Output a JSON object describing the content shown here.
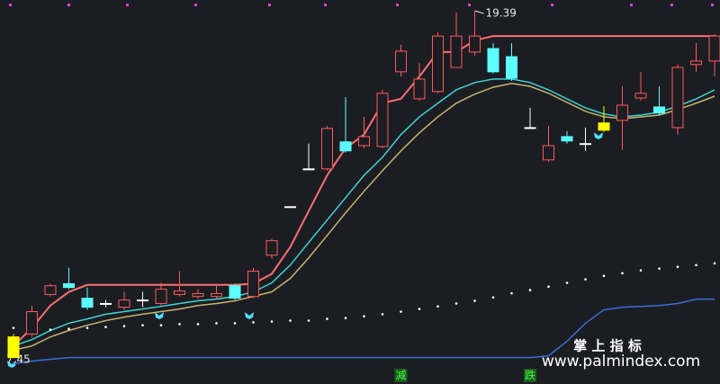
{
  "chart_data": {
    "type": "candlestick",
    "ylim": [
      6.55,
      19.76
    ],
    "candles": {
      "open": [
        7.46,
        8.27,
        9.63,
        10.0,
        9.5,
        9.32,
        9.19,
        9.44,
        9.32,
        9.63,
        9.56,
        9.56,
        9.93,
        9.56,
        10.98,
        12.65,
        13.95,
        13.95,
        14.88,
        14.75,
        14.72,
        17.29,
        16.36,
        16.61,
        17.44,
        17.97,
        18.09,
        17.81,
        15.37,
        14.26,
        15.06,
        14.82,
        15.28,
        15.62,
        16.39,
        16.08,
        15.37,
        17.54,
        17.66
      ],
      "close": [
        8.17,
        9.04,
        9.93,
        9.87,
        9.19,
        9.32,
        9.44,
        9.44,
        9.81,
        9.75,
        9.66,
        9.66,
        9.5,
        10.43,
        11.48,
        12.65,
        13.95,
        15.34,
        14.57,
        15.06,
        16.55,
        18.0,
        17.04,
        18.52,
        18.52,
        18.52,
        17.29,
        17.07,
        15.37,
        14.75,
        14.91,
        14.82,
        15.53,
        16.14,
        16.55,
        15.87,
        17.44,
        17.66,
        18.52
      ],
      "high": [
        8.27,
        9.25,
        10.0,
        10.55,
        9.87,
        9.44,
        9.72,
        9.72,
        10.03,
        10.43,
        9.81,
        10.0,
        10.0,
        10.55,
        11.54,
        12.65,
        14.82,
        15.43,
        16.42,
        15.74,
        16.67,
        18.22,
        17.6,
        18.65,
        19.33,
        19.39,
        18.28,
        18.28,
        16.05,
        15.43,
        15.25,
        15.37,
        16.11,
        16.79,
        17.29,
        16.79,
        17.54,
        18.28,
        18.59
      ],
      "low": [
        7.45,
        8.17,
        9.56,
        9.81,
        9.1,
        9.19,
        9.1,
        9.19,
        9.25,
        9.56,
        9.47,
        9.47,
        9.44,
        9.5,
        10.86,
        12.65,
        13.95,
        13.89,
        14.51,
        14.66,
        14.66,
        17.13,
        16.3,
        16.55,
        17.44,
        17.84,
        17.23,
        16.98,
        15.37,
        14.2,
        14.82,
        14.57,
        15.22,
        14.6,
        16.3,
        15.8,
        15.13,
        17.29,
        17.13
      ],
      "colors": [
        "#ffff00",
        "#ff5a5a",
        "#ff5a5a",
        "#5cffff",
        "#5cffff",
        "#ffffff",
        "#ff5a5a",
        "#ffffff",
        "#ff5a5a",
        "#ff5a5a",
        "#ff5a5a",
        "#ff5a5a",
        "#5cffff",
        "#ff5a5a",
        "#ff5a5a",
        "#ffffff",
        "#ffffff",
        "#ff5a5a",
        "#5cffff",
        "#ff5a5a",
        "#ff5a5a",
        "#ff5a5a",
        "#ff5a5a",
        "#ff5a5a",
        "#ff5a5a",
        "#ff5a5a",
        "#5cffff",
        "#5cffff",
        "#ffffff",
        "#ff5a5a",
        "#5cffff",
        "#ffffff",
        "#ffff00",
        "#ff5a5a",
        "#ff5a5a",
        "#5cffff",
        "#ff5a5a",
        "#ff5a5a",
        "#ff5a5a"
      ]
    },
    "series": [
      {
        "color": "#ff6f6f",
        "style": "line",
        "values": [
          7.86,
          8.48,
          9.25,
          9.72,
          9.96,
          9.96,
          9.96,
          9.96,
          9.96,
          9.96,
          9.96,
          9.96,
          9.96,
          10.0,
          10.34,
          11.26,
          12.5,
          13.73,
          14.66,
          15.13,
          16.21,
          16.36,
          17.13,
          17.97,
          17.97,
          18.37,
          18.52,
          18.52,
          18.52,
          18.52,
          18.52,
          18.52,
          18.52,
          18.52,
          18.52,
          18.52,
          18.52,
          18.52,
          18.52
        ]
      },
      {
        "color": "#3fd4d4",
        "style": "line",
        "values": [
          7.86,
          8.08,
          8.39,
          8.64,
          8.79,
          8.95,
          9.04,
          9.13,
          9.22,
          9.32,
          9.41,
          9.47,
          9.56,
          9.72,
          10.03,
          10.64,
          11.42,
          12.19,
          12.96,
          13.73,
          14.35,
          15.13,
          15.74,
          16.21,
          16.67,
          16.92,
          17.04,
          17.04,
          16.92,
          16.67,
          16.36,
          16.05,
          15.84,
          15.74,
          15.8,
          15.9,
          16.11,
          16.36,
          16.67
        ]
      },
      {
        "color": "#c8b46e",
        "style": "line",
        "values": [
          7.71,
          7.86,
          8.17,
          8.39,
          8.57,
          8.73,
          8.85,
          8.95,
          9.04,
          9.13,
          9.25,
          9.32,
          9.41,
          9.56,
          9.72,
          10.18,
          10.89,
          11.66,
          12.44,
          13.18,
          13.89,
          14.57,
          15.19,
          15.74,
          16.21,
          16.52,
          16.76,
          16.89,
          16.79,
          16.55,
          16.24,
          15.93,
          15.74,
          15.68,
          15.74,
          15.8,
          15.99,
          16.21,
          16.45
        ]
      },
      {
        "color": "#ffffff",
        "style": "dots",
        "values": [
          8.48,
          8.45,
          8.42,
          8.45,
          8.48,
          8.51,
          8.54,
          8.57,
          8.57,
          8.61,
          8.61,
          8.64,
          8.64,
          8.67,
          8.7,
          8.73,
          8.73,
          8.79,
          8.82,
          8.88,
          8.95,
          9.04,
          9.13,
          9.22,
          9.32,
          9.41,
          9.53,
          9.67,
          9.78,
          9.9,
          10.03,
          10.15,
          10.27,
          10.36,
          10.46,
          10.52,
          10.58,
          10.64,
          10.7
        ]
      },
      {
        "color": "#3a6fd8",
        "style": "line",
        "values": [
          7.25,
          7.34,
          7.4,
          7.46,
          7.46,
          7.46,
          7.46,
          7.46,
          7.46,
          7.46,
          7.46,
          7.46,
          7.46,
          7.46,
          7.46,
          7.46,
          7.46,
          7.46,
          7.46,
          7.46,
          7.46,
          7.46,
          7.46,
          7.46,
          7.46,
          7.46,
          7.46,
          7.46,
          7.46,
          7.52,
          8.02,
          8.64,
          9.1,
          9.19,
          9.22,
          9.25,
          9.32,
          9.47,
          9.47
        ]
      }
    ],
    "signal_labels": [
      null,
      null,
      null,
      null,
      null,
      null,
      null,
      null,
      null,
      null,
      null,
      null,
      null,
      null,
      null,
      null,
      null,
      null,
      null,
      null,
      null,
      "减",
      null,
      null,
      null,
      null,
      null,
      null,
      "跌",
      null,
      null,
      null,
      null,
      null,
      null,
      null,
      null,
      null,
      null
    ],
    "watermark": {
      "title": "掌 上 指 标",
      "url": "www.palmindex.com"
    }
  }
}
